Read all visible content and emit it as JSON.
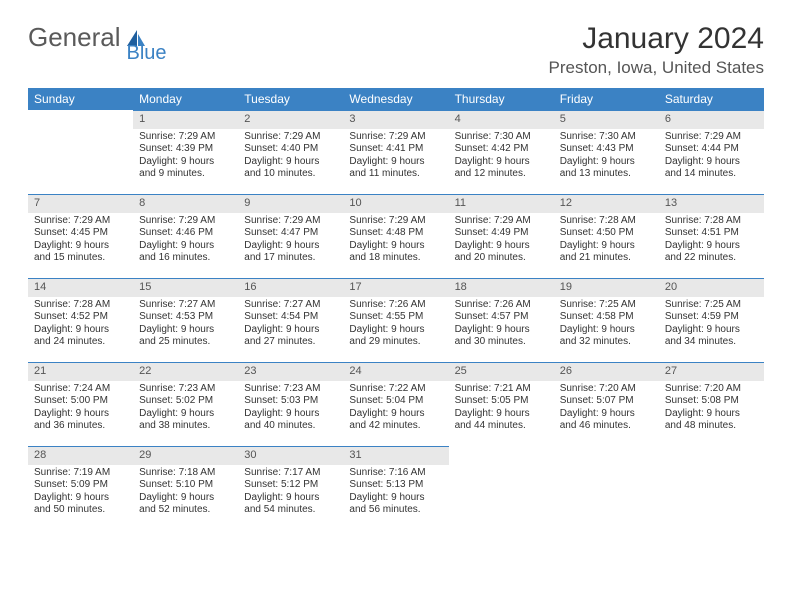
{
  "logo": {
    "text1": "General",
    "text2": "Blue"
  },
  "title": "January 2024",
  "location": "Preston, Iowa, United States",
  "colors": {
    "header_bg": "#3b82c4",
    "header_text": "#ffffff",
    "daynum_bg": "#e8e8e8",
    "daynum_border": "#3b82c4",
    "body_text": "#333333",
    "logo_gray": "#5a5a5a",
    "logo_blue": "#3b82c4"
  },
  "weekdays": [
    "Sunday",
    "Monday",
    "Tuesday",
    "Wednesday",
    "Thursday",
    "Friday",
    "Saturday"
  ],
  "weeks": [
    [
      {
        "empty": true
      },
      {
        "n": "1",
        "sr": "Sunrise: 7:29 AM",
        "ss": "Sunset: 4:39 PM",
        "dl1": "Daylight: 9 hours",
        "dl2": "and 9 minutes."
      },
      {
        "n": "2",
        "sr": "Sunrise: 7:29 AM",
        "ss": "Sunset: 4:40 PM",
        "dl1": "Daylight: 9 hours",
        "dl2": "and 10 minutes."
      },
      {
        "n": "3",
        "sr": "Sunrise: 7:29 AM",
        "ss": "Sunset: 4:41 PM",
        "dl1": "Daylight: 9 hours",
        "dl2": "and 11 minutes."
      },
      {
        "n": "4",
        "sr": "Sunrise: 7:30 AM",
        "ss": "Sunset: 4:42 PM",
        "dl1": "Daylight: 9 hours",
        "dl2": "and 12 minutes."
      },
      {
        "n": "5",
        "sr": "Sunrise: 7:30 AM",
        "ss": "Sunset: 4:43 PM",
        "dl1": "Daylight: 9 hours",
        "dl2": "and 13 minutes."
      },
      {
        "n": "6",
        "sr": "Sunrise: 7:29 AM",
        "ss": "Sunset: 4:44 PM",
        "dl1": "Daylight: 9 hours",
        "dl2": "and 14 minutes."
      }
    ],
    [
      {
        "n": "7",
        "sr": "Sunrise: 7:29 AM",
        "ss": "Sunset: 4:45 PM",
        "dl1": "Daylight: 9 hours",
        "dl2": "and 15 minutes."
      },
      {
        "n": "8",
        "sr": "Sunrise: 7:29 AM",
        "ss": "Sunset: 4:46 PM",
        "dl1": "Daylight: 9 hours",
        "dl2": "and 16 minutes."
      },
      {
        "n": "9",
        "sr": "Sunrise: 7:29 AM",
        "ss": "Sunset: 4:47 PM",
        "dl1": "Daylight: 9 hours",
        "dl2": "and 17 minutes."
      },
      {
        "n": "10",
        "sr": "Sunrise: 7:29 AM",
        "ss": "Sunset: 4:48 PM",
        "dl1": "Daylight: 9 hours",
        "dl2": "and 18 minutes."
      },
      {
        "n": "11",
        "sr": "Sunrise: 7:29 AM",
        "ss": "Sunset: 4:49 PM",
        "dl1": "Daylight: 9 hours",
        "dl2": "and 20 minutes."
      },
      {
        "n": "12",
        "sr": "Sunrise: 7:28 AM",
        "ss": "Sunset: 4:50 PM",
        "dl1": "Daylight: 9 hours",
        "dl2": "and 21 minutes."
      },
      {
        "n": "13",
        "sr": "Sunrise: 7:28 AM",
        "ss": "Sunset: 4:51 PM",
        "dl1": "Daylight: 9 hours",
        "dl2": "and 22 minutes."
      }
    ],
    [
      {
        "n": "14",
        "sr": "Sunrise: 7:28 AM",
        "ss": "Sunset: 4:52 PM",
        "dl1": "Daylight: 9 hours",
        "dl2": "and 24 minutes."
      },
      {
        "n": "15",
        "sr": "Sunrise: 7:27 AM",
        "ss": "Sunset: 4:53 PM",
        "dl1": "Daylight: 9 hours",
        "dl2": "and 25 minutes."
      },
      {
        "n": "16",
        "sr": "Sunrise: 7:27 AM",
        "ss": "Sunset: 4:54 PM",
        "dl1": "Daylight: 9 hours",
        "dl2": "and 27 minutes."
      },
      {
        "n": "17",
        "sr": "Sunrise: 7:26 AM",
        "ss": "Sunset: 4:55 PM",
        "dl1": "Daylight: 9 hours",
        "dl2": "and 29 minutes."
      },
      {
        "n": "18",
        "sr": "Sunrise: 7:26 AM",
        "ss": "Sunset: 4:57 PM",
        "dl1": "Daylight: 9 hours",
        "dl2": "and 30 minutes."
      },
      {
        "n": "19",
        "sr": "Sunrise: 7:25 AM",
        "ss": "Sunset: 4:58 PM",
        "dl1": "Daylight: 9 hours",
        "dl2": "and 32 minutes."
      },
      {
        "n": "20",
        "sr": "Sunrise: 7:25 AM",
        "ss": "Sunset: 4:59 PM",
        "dl1": "Daylight: 9 hours",
        "dl2": "and 34 minutes."
      }
    ],
    [
      {
        "n": "21",
        "sr": "Sunrise: 7:24 AM",
        "ss": "Sunset: 5:00 PM",
        "dl1": "Daylight: 9 hours",
        "dl2": "and 36 minutes."
      },
      {
        "n": "22",
        "sr": "Sunrise: 7:23 AM",
        "ss": "Sunset: 5:02 PM",
        "dl1": "Daylight: 9 hours",
        "dl2": "and 38 minutes."
      },
      {
        "n": "23",
        "sr": "Sunrise: 7:23 AM",
        "ss": "Sunset: 5:03 PM",
        "dl1": "Daylight: 9 hours",
        "dl2": "and 40 minutes."
      },
      {
        "n": "24",
        "sr": "Sunrise: 7:22 AM",
        "ss": "Sunset: 5:04 PM",
        "dl1": "Daylight: 9 hours",
        "dl2": "and 42 minutes."
      },
      {
        "n": "25",
        "sr": "Sunrise: 7:21 AM",
        "ss": "Sunset: 5:05 PM",
        "dl1": "Daylight: 9 hours",
        "dl2": "and 44 minutes."
      },
      {
        "n": "26",
        "sr": "Sunrise: 7:20 AM",
        "ss": "Sunset: 5:07 PM",
        "dl1": "Daylight: 9 hours",
        "dl2": "and 46 minutes."
      },
      {
        "n": "27",
        "sr": "Sunrise: 7:20 AM",
        "ss": "Sunset: 5:08 PM",
        "dl1": "Daylight: 9 hours",
        "dl2": "and 48 minutes."
      }
    ],
    [
      {
        "n": "28",
        "sr": "Sunrise: 7:19 AM",
        "ss": "Sunset: 5:09 PM",
        "dl1": "Daylight: 9 hours",
        "dl2": "and 50 minutes."
      },
      {
        "n": "29",
        "sr": "Sunrise: 7:18 AM",
        "ss": "Sunset: 5:10 PM",
        "dl1": "Daylight: 9 hours",
        "dl2": "and 52 minutes."
      },
      {
        "n": "30",
        "sr": "Sunrise: 7:17 AM",
        "ss": "Sunset: 5:12 PM",
        "dl1": "Daylight: 9 hours",
        "dl2": "and 54 minutes."
      },
      {
        "n": "31",
        "sr": "Sunrise: 7:16 AM",
        "ss": "Sunset: 5:13 PM",
        "dl1": "Daylight: 9 hours",
        "dl2": "and 56 minutes."
      },
      {
        "empty": true
      },
      {
        "empty": true
      },
      {
        "empty": true
      }
    ]
  ]
}
